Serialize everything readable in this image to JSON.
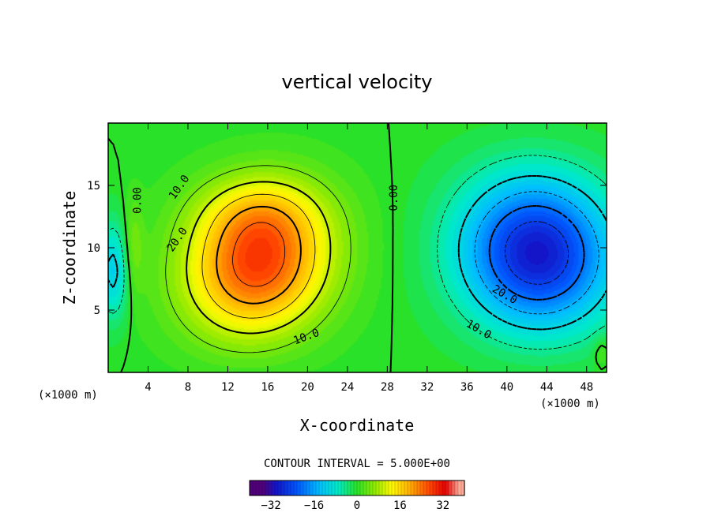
{
  "chart_data": {
    "type": "heatmap",
    "title": "vertical velocity",
    "xlabel": "X-coordinate",
    "ylabel": "Z-coordinate",
    "x_unit_label": "(×1000 m)",
    "y_unit_label": "(×1000 m)",
    "xlim": [
      0,
      50
    ],
    "ylim": [
      0,
      20
    ],
    "x_ticks": [
      4,
      8,
      12,
      16,
      20,
      24,
      28,
      32,
      36,
      40,
      44,
      48
    ],
    "y_ticks": [
      5,
      10,
      15
    ],
    "contour_interval_text": "CONTOUR INTERVAL = 5.000E+00",
    "contour_interval": 5,
    "field_range": [
      -32,
      32
    ],
    "colorbar": {
      "ticks": [
        -32,
        -16,
        0,
        16,
        32
      ],
      "tick_labels": [
        "−32",
        "−16",
        "0",
        "16",
        "32"
      ]
    },
    "features": [
      {
        "name": "updraft",
        "center_x": 15,
        "center_z": 8.5,
        "peak": 28
      },
      {
        "name": "downdraft",
        "center_x": 43,
        "center_z": 9.5,
        "peak": -30
      },
      {
        "name": "left-edge-downdraft",
        "center_x": 0.5,
        "center_z": 8,
        "peak": -12
      }
    ],
    "contour_labels": [
      {
        "text": "0.00",
        "x": 3.3,
        "z": 13.8
      },
      {
        "text": "10.0",
        "x": 7.4,
        "z": 14.7
      },
      {
        "text": "20.0",
        "x": 7.2,
        "z": 10.5
      },
      {
        "text": "10.0",
        "x": 20.0,
        "z": 2.6
      },
      {
        "text": "0.00",
        "x": 29.0,
        "z": 14.0
      },
      {
        "text": "20.0",
        "x": 39.6,
        "z": 6.0
      },
      {
        "text": "10.0",
        "x": 37.0,
        "z": 3.2
      }
    ]
  }
}
